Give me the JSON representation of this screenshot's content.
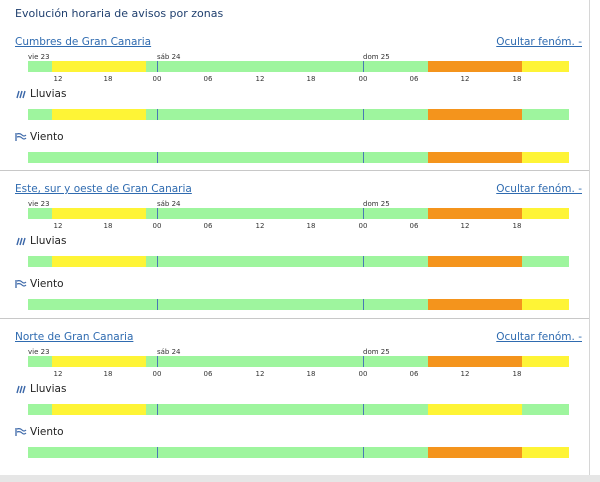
{
  "title": "Evolución horaria de avisos por zonas",
  "colors": {
    "green": "#9ef59e",
    "yellow": "#fef436",
    "orange": "#f4941c",
    "link": "#2f6bb0"
  },
  "days": [
    "vie 23",
    "sáb 24",
    "dom 25"
  ],
  "hours": [
    "12",
    "18",
    "00",
    "06",
    "12",
    "18",
    "00",
    "06",
    "12",
    "18"
  ],
  "hide_label": "Ocultar fenóm. -",
  "zones": [
    {
      "name": "Cumbres de Gran Canaria",
      "overall": [
        "green",
        "yellow",
        "yellow",
        "green",
        "green",
        "green",
        "green",
        "green",
        "green",
        "orange",
        "orange",
        "yellow"
      ],
      "phenomena": [
        {
          "label": "Lluvias",
          "icon": "rain-icon",
          "levels": [
            "green",
            "yellow",
            "yellow",
            "green",
            "green",
            "green",
            "green",
            "green",
            "green",
            "orange",
            "orange",
            "green"
          ]
        },
        {
          "label": "Viento",
          "icon": "wind-icon",
          "levels": [
            "green",
            "green",
            "green",
            "green",
            "green",
            "green",
            "green",
            "green",
            "green",
            "orange",
            "orange",
            "yellow"
          ]
        }
      ]
    },
    {
      "name": "Este, sur y oeste de Gran Canaria",
      "overall": [
        "green",
        "yellow",
        "yellow",
        "green",
        "green",
        "green",
        "green",
        "green",
        "green",
        "orange",
        "orange",
        "yellow"
      ],
      "phenomena": [
        {
          "label": "Lluvias",
          "icon": "rain-icon",
          "levels": [
            "green",
            "yellow",
            "yellow",
            "green",
            "green",
            "green",
            "green",
            "green",
            "green",
            "orange",
            "orange",
            "green"
          ]
        },
        {
          "label": "Viento",
          "icon": "wind-icon",
          "levels": [
            "green",
            "green",
            "green",
            "green",
            "green",
            "green",
            "green",
            "green",
            "green",
            "orange",
            "orange",
            "yellow"
          ]
        }
      ]
    },
    {
      "name": "Norte de Gran Canaria",
      "overall": [
        "green",
        "yellow",
        "yellow",
        "green",
        "green",
        "green",
        "green",
        "green",
        "green",
        "orange",
        "orange",
        "yellow"
      ],
      "phenomena": [
        {
          "label": "Lluvias",
          "icon": "rain-icon",
          "levels": [
            "green",
            "yellow",
            "yellow",
            "green",
            "green",
            "green",
            "green",
            "green",
            "green",
            "yellow",
            "yellow",
            "green"
          ]
        },
        {
          "label": "Viento",
          "icon": "wind-icon",
          "levels": [
            "green",
            "green",
            "green",
            "green",
            "green",
            "green",
            "green",
            "green",
            "green",
            "orange",
            "orange",
            "yellow"
          ]
        }
      ]
    }
  ]
}
